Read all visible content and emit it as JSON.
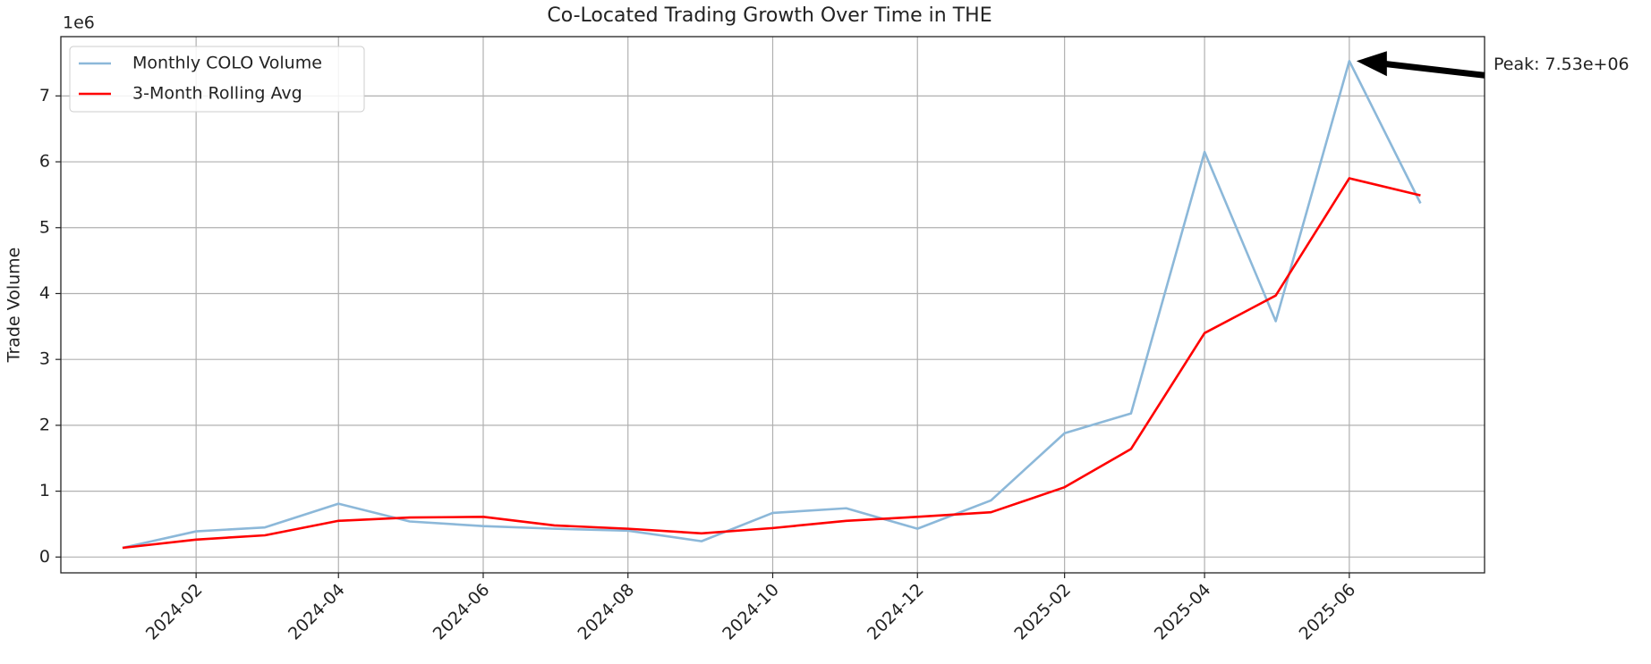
{
  "chart_data": {
    "type": "line",
    "title": "Co-Located Trading Growth Over Time in THE",
    "ylabel": "Trade Volume",
    "y_offset_label": "1e6",
    "x": [
      "2024-01",
      "2024-02",
      "2024-03",
      "2024-04",
      "2024-05",
      "2024-06",
      "2024-07",
      "2024-08",
      "2024-09",
      "2024-10",
      "2024-11",
      "2024-12",
      "2025-01",
      "2025-02",
      "2025-03",
      "2025-04",
      "2025-05",
      "2025-06",
      "2025-07"
    ],
    "series": [
      {
        "name": "Monthly COLO Volume",
        "color": "#8cb8d9",
        "values": [
          0.14,
          0.39,
          0.45,
          0.81,
          0.54,
          0.47,
          0.43,
          0.4,
          0.24,
          0.67,
          0.74,
          0.43,
          0.86,
          1.88,
          2.18,
          6.15,
          3.58,
          7.53,
          5.37
        ]
      },
      {
        "name": "3-Month Rolling Avg",
        "color": "#ff0000",
        "values": [
          0.14,
          0.265,
          0.33,
          0.55,
          0.6,
          0.61,
          0.48,
          0.43,
          0.36,
          0.44,
          0.55,
          0.61,
          0.68,
          1.06,
          1.64,
          3.4,
          3.97,
          5.75,
          5.49
        ]
      }
    ],
    "xlim": [
      "2023-12-06",
      "2025-07-28"
    ],
    "xticks": [
      "2024-02",
      "2024-04",
      "2024-06",
      "2024-08",
      "2024-10",
      "2024-12",
      "2025-02",
      "2025-04",
      "2025-06"
    ],
    "ylim": [
      -0.24,
      7.9
    ],
    "yticks": [
      0,
      1,
      2,
      3,
      4,
      5,
      6,
      7
    ],
    "grid": true,
    "legend": "upper left",
    "annotation": {
      "text": "Peak: 7.53e+06",
      "x": "2025-06",
      "y": 7.53
    }
  }
}
